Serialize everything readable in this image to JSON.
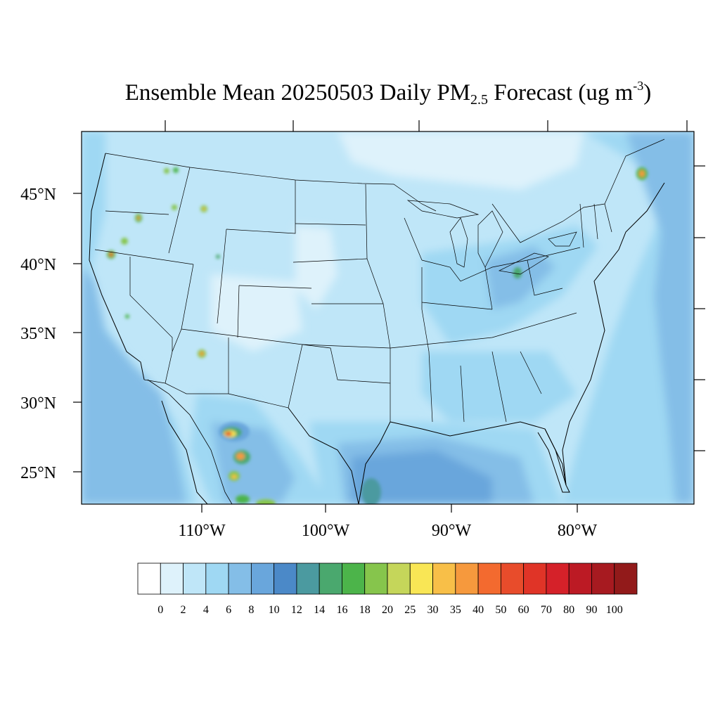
{
  "title": {
    "prefix": "Ensemble Mean 20250503 Daily PM",
    "subscript": "2.5",
    "suffix": " Forecast (ug m",
    "superscript": "-3",
    "end": ")"
  },
  "axes": {
    "lat_labels": [
      "45°N",
      "40°N",
      "35°N",
      "30°N",
      "25°N"
    ],
    "lon_labels": [
      "110°W",
      "100°W",
      "90°W",
      "80°W"
    ]
  },
  "colorbar": {
    "labels": [
      "0",
      "2",
      "4",
      "6",
      "8",
      "10",
      "12",
      "14",
      "16",
      "18",
      "20",
      "25",
      "30",
      "35",
      "40",
      "50",
      "60",
      "70",
      "80",
      "90",
      "100"
    ],
    "colors": [
      "#ffffff",
      "#def2fb",
      "#bfe6f8",
      "#9fd8f3",
      "#84bee7",
      "#69a6dc",
      "#4b89c8",
      "#4b9aa0",
      "#4aa86e",
      "#4cb44a",
      "#86c54c",
      "#c5d65a",
      "#f9e655",
      "#f8bf48",
      "#f6993d",
      "#f36a2f",
      "#e84c2b",
      "#e03427",
      "#d52129",
      "#bc1a24",
      "#a71a20",
      "#921a1a"
    ]
  },
  "colors": {
    "background_field": "#bfe6f8",
    "ocean_field": "#9fd8f3",
    "boundary": "#000000"
  }
}
